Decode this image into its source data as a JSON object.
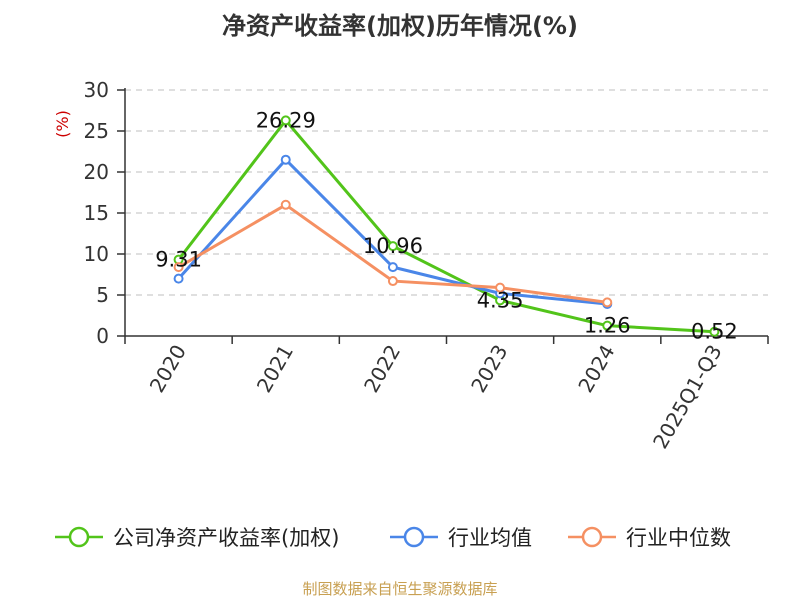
{
  "chart_data": {
    "type": "line",
    "title": "净资产收益率(加权)历年情况(%)",
    "ylabel": "(%)",
    "xlabel": "",
    "categories": [
      "2020",
      "2021",
      "2022",
      "2023",
      "2024",
      "2025Q1-Q3"
    ],
    "ylim": [
      0,
      30
    ],
    "yticks": [
      0,
      5,
      10,
      15,
      20,
      25,
      30
    ],
    "grid": true,
    "legend_position": "bottom",
    "series": [
      {
        "name": "公司净资产收益率(加权)",
        "color": "#52c41a",
        "values": [
          9.31,
          26.29,
          10.96,
          4.35,
          1.26,
          0.52
        ],
        "labels": [
          "9.31",
          "26.29",
          "10.96",
          "4.35",
          "1.26",
          "0.52"
        ]
      },
      {
        "name": "行业均值",
        "color": "#4a86e8",
        "values": [
          7.0,
          21.5,
          8.4,
          5.2,
          3.9,
          null
        ]
      },
      {
        "name": "行业中位数",
        "color": "#f59062",
        "values": [
          8.4,
          16.0,
          6.7,
          5.9,
          4.1,
          null
        ]
      }
    ]
  },
  "source": "制图数据来自恒生聚源数据库",
  "colors": {
    "title": "#333333",
    "axis": "#333333",
    "grid": "#cccccc",
    "ylabel": "#cc0000",
    "source": "#c8a052"
  }
}
